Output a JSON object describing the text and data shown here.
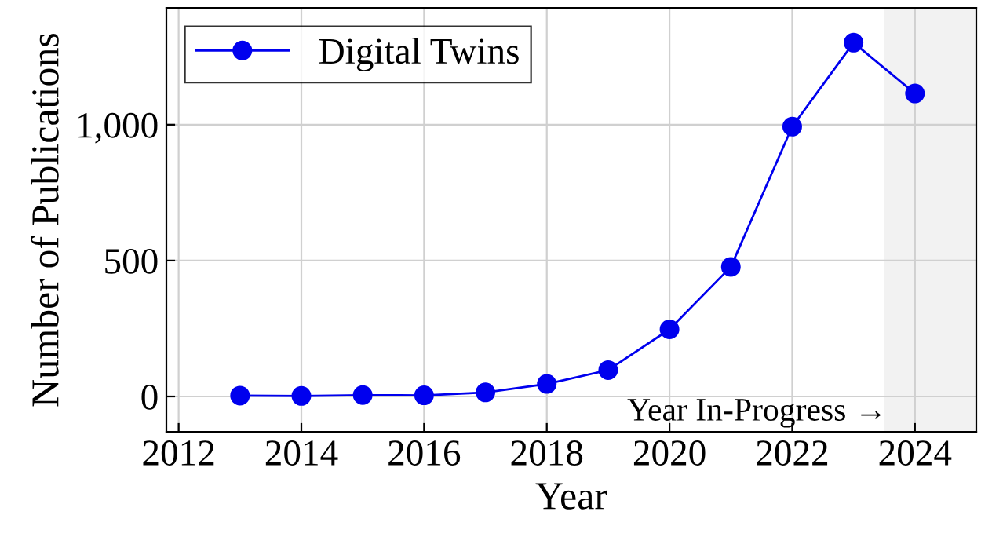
{
  "chart_data": {
    "type": "line",
    "xlabel": "Year",
    "ylabel": "Number of Publications",
    "x": [
      2013,
      2014,
      2015,
      2016,
      2017,
      2018,
      2019,
      2020,
      2021,
      2022,
      2023,
      2024
    ],
    "series": [
      {
        "name": "Digital Twins",
        "color": "#0000ee",
        "values": [
          3,
          2,
          5,
          4,
          15,
          46,
          97,
          247,
          477,
          993,
          1302,
          1115
        ]
      }
    ],
    "xlim": [
      2011.8,
      2025
    ],
    "xticks": [
      2012,
      2014,
      2016,
      2018,
      2020,
      2022,
      2024
    ],
    "ylim": [
      -130,
      1430
    ],
    "yticks": [
      0,
      500,
      {
        "value": 1000,
        "label": "1,000"
      }
    ],
    "bands": [
      {
        "axis": "x",
        "from": 2023.5,
        "to": 2025,
        "color": "#f2f2f2"
      }
    ],
    "annotations": [
      "Year In-Progress →"
    ],
    "grid": true,
    "legend": "top left",
    "marker": "circle",
    "line_style": "solid"
  }
}
